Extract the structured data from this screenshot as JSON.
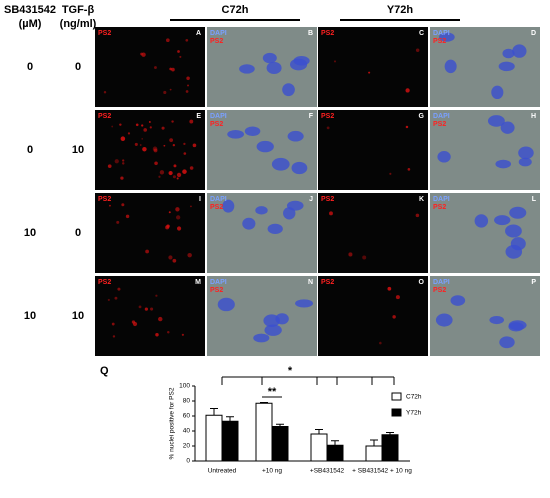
{
  "header": {
    "columns": [
      "C72h",
      "Y72h"
    ],
    "sb": "SB431542",
    "sb_unit": "(µM)",
    "tgf": "TGF-β",
    "tgf_unit": "(ng/ml)"
  },
  "rows": [
    {
      "sb": "0",
      "tgf": "0"
    },
    {
      "sb": "0",
      "tgf": "10"
    },
    {
      "sb": "10",
      "tgf": "0"
    },
    {
      "sb": "10",
      "tgf": "10"
    }
  ],
  "panels": [
    {
      "letter": "A",
      "labels": [
        "PS2"
      ]
    },
    {
      "letter": "B",
      "labels": [
        "DAPI",
        "PS2"
      ]
    },
    {
      "letter": "C",
      "labels": [
        "PS2"
      ]
    },
    {
      "letter": "D",
      "labels": [
        "DAPI",
        "PS2"
      ]
    },
    {
      "letter": "E",
      "labels": [
        "PS2"
      ]
    },
    {
      "letter": "F",
      "labels": [
        "DAPI",
        "PS2"
      ]
    },
    {
      "letter": "G",
      "labels": [
        "PS2"
      ]
    },
    {
      "letter": "H",
      "labels": [
        "DAPI",
        "PS2"
      ]
    },
    {
      "letter": "I",
      "labels": [
        "PS2"
      ]
    },
    {
      "letter": "J",
      "labels": [
        "DAPI",
        "PS2"
      ]
    },
    {
      "letter": "K",
      "labels": [
        "PS2"
      ]
    },
    {
      "letter": "L",
      "labels": [
        "DAPI",
        "PS2"
      ]
    },
    {
      "letter": "M",
      "labels": [
        "PS2"
      ]
    },
    {
      "letter": "N",
      "labels": [
        "DAPI",
        "PS2"
      ]
    },
    {
      "letter": "O",
      "labels": [
        "PS2"
      ]
    },
    {
      "letter": "P",
      "labels": [
        "DAPI",
        "PS2"
      ]
    }
  ],
  "chart_data": {
    "type": "bar",
    "panel_label": "Q",
    "y_label": "% nuclei positive for PS2",
    "categories": [
      "Untreated",
      "+10 ng",
      "+SB431542",
      "+ SB431542 + 10 ng"
    ],
    "series": [
      {
        "name": "C72h",
        "color": "#ffffff",
        "values": [
          61,
          77,
          36,
          20
        ],
        "errors": [
          9,
          1,
          6,
          8
        ]
      },
      {
        "name": "Y72h",
        "color": "#000000",
        "values": [
          53,
          46,
          21,
          35
        ],
        "errors": [
          6,
          3,
          6,
          3
        ]
      }
    ],
    "ylim": [
      0,
      100
    ],
    "yticks": [
      0,
      20,
      40,
      60,
      80,
      100
    ],
    "annotations": [
      "**",
      "*"
    ]
  }
}
